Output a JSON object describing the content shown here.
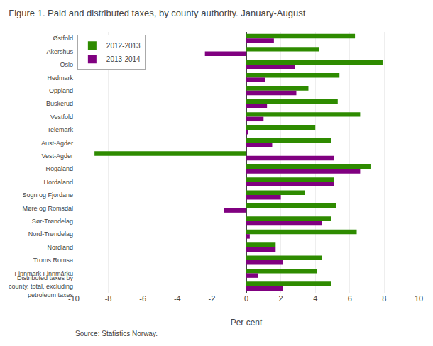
{
  "chart_data": {
    "type": "bar",
    "orientation": "horizontal",
    "title": "Figure 1. Paid and distributed taxes, by county authority. January-August",
    "categories": [
      "Østfold",
      "Akershus",
      "Oslo",
      "Hedmark",
      "Oppland",
      "Buskerud",
      "Vestfold",
      "Telemark",
      "Aust-Agder",
      "Vest-Agder",
      "Rogaland",
      "Hordaland",
      "Sogn og Fjordane",
      "Møre og Romsdal",
      "Sør-Trøndelag",
      "Nord-Trøndelag",
      "Nordland",
      "Troms Romsa",
      "Finnmark Finnmárku",
      "Distributed taxes by\ncounty, total, excluding\npetroleum taxes"
    ],
    "series": [
      {
        "name": "2012-2013",
        "color": "#2e8b00",
        "values": [
          6.3,
          4.2,
          7.9,
          5.4,
          3.6,
          5.3,
          6.6,
          4.0,
          4.9,
          -8.8,
          7.2,
          5.1,
          3.4,
          5.2,
          4.9,
          6.4,
          1.7,
          4.4,
          4.1,
          4.9
        ]
      },
      {
        "name": "2013-2014",
        "color": "#800080",
        "values": [
          1.6,
          -2.4,
          2.8,
          1.1,
          2.9,
          1.2,
          1.0,
          0.1,
          1.5,
          5.1,
          6.6,
          5.1,
          2.0,
          -1.3,
          4.4,
          0.2,
          1.7,
          2.1,
          0.7,
          2.1
        ]
      }
    ],
    "xlabel": "Per cent",
    "xlim": [
      -10,
      10
    ],
    "xticks": [
      -10,
      -8,
      -6,
      -4,
      -2,
      0,
      2,
      4,
      6,
      8,
      10
    ],
    "grid": true,
    "legend": "upper left",
    "annotations": [
      "Source: Statistics Norway."
    ]
  }
}
